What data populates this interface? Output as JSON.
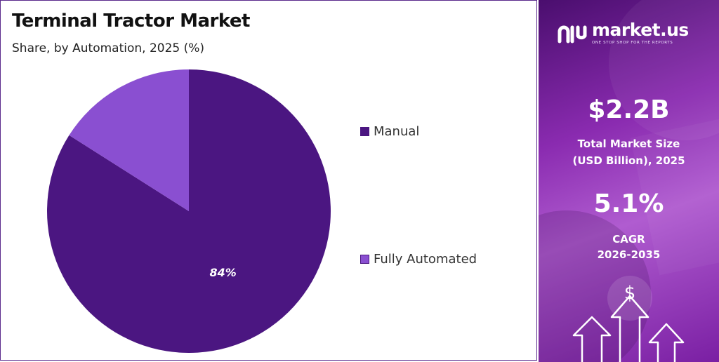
{
  "header": {
    "title": "Terminal Tractor Market",
    "subtitle": "Share, by Automation, 2025 (%)"
  },
  "chart_data": {
    "type": "pie",
    "title": "Terminal Tractor Market",
    "subtitle": "Share, by Automation, 2025 (%)",
    "slices": [
      {
        "label": "Manual",
        "value": 84,
        "color": "#4b1681",
        "data_label": "84%"
      },
      {
        "label": "Fully Automated",
        "value": 16,
        "color": "#8a4fd1",
        "data_label": ""
      }
    ],
    "legend_position": "right"
  },
  "brand": {
    "name": "market.us",
    "tagline": "ONE STOP SHOP FOR THE REPORTS"
  },
  "stats": {
    "market_size_value": "$2.2B",
    "market_size_label_1": "Total Market Size",
    "market_size_label_2": "(USD Billion), 2025",
    "cagr_value": "5.1%",
    "cagr_label_1": "CAGR",
    "cagr_label_2": "2026-2035"
  },
  "icons": {
    "dollar_symbol": "$"
  },
  "colors": {
    "accent_dark": "#4b1681",
    "accent_light": "#8a4fd1",
    "panel_purple": "#8a2bb0"
  }
}
